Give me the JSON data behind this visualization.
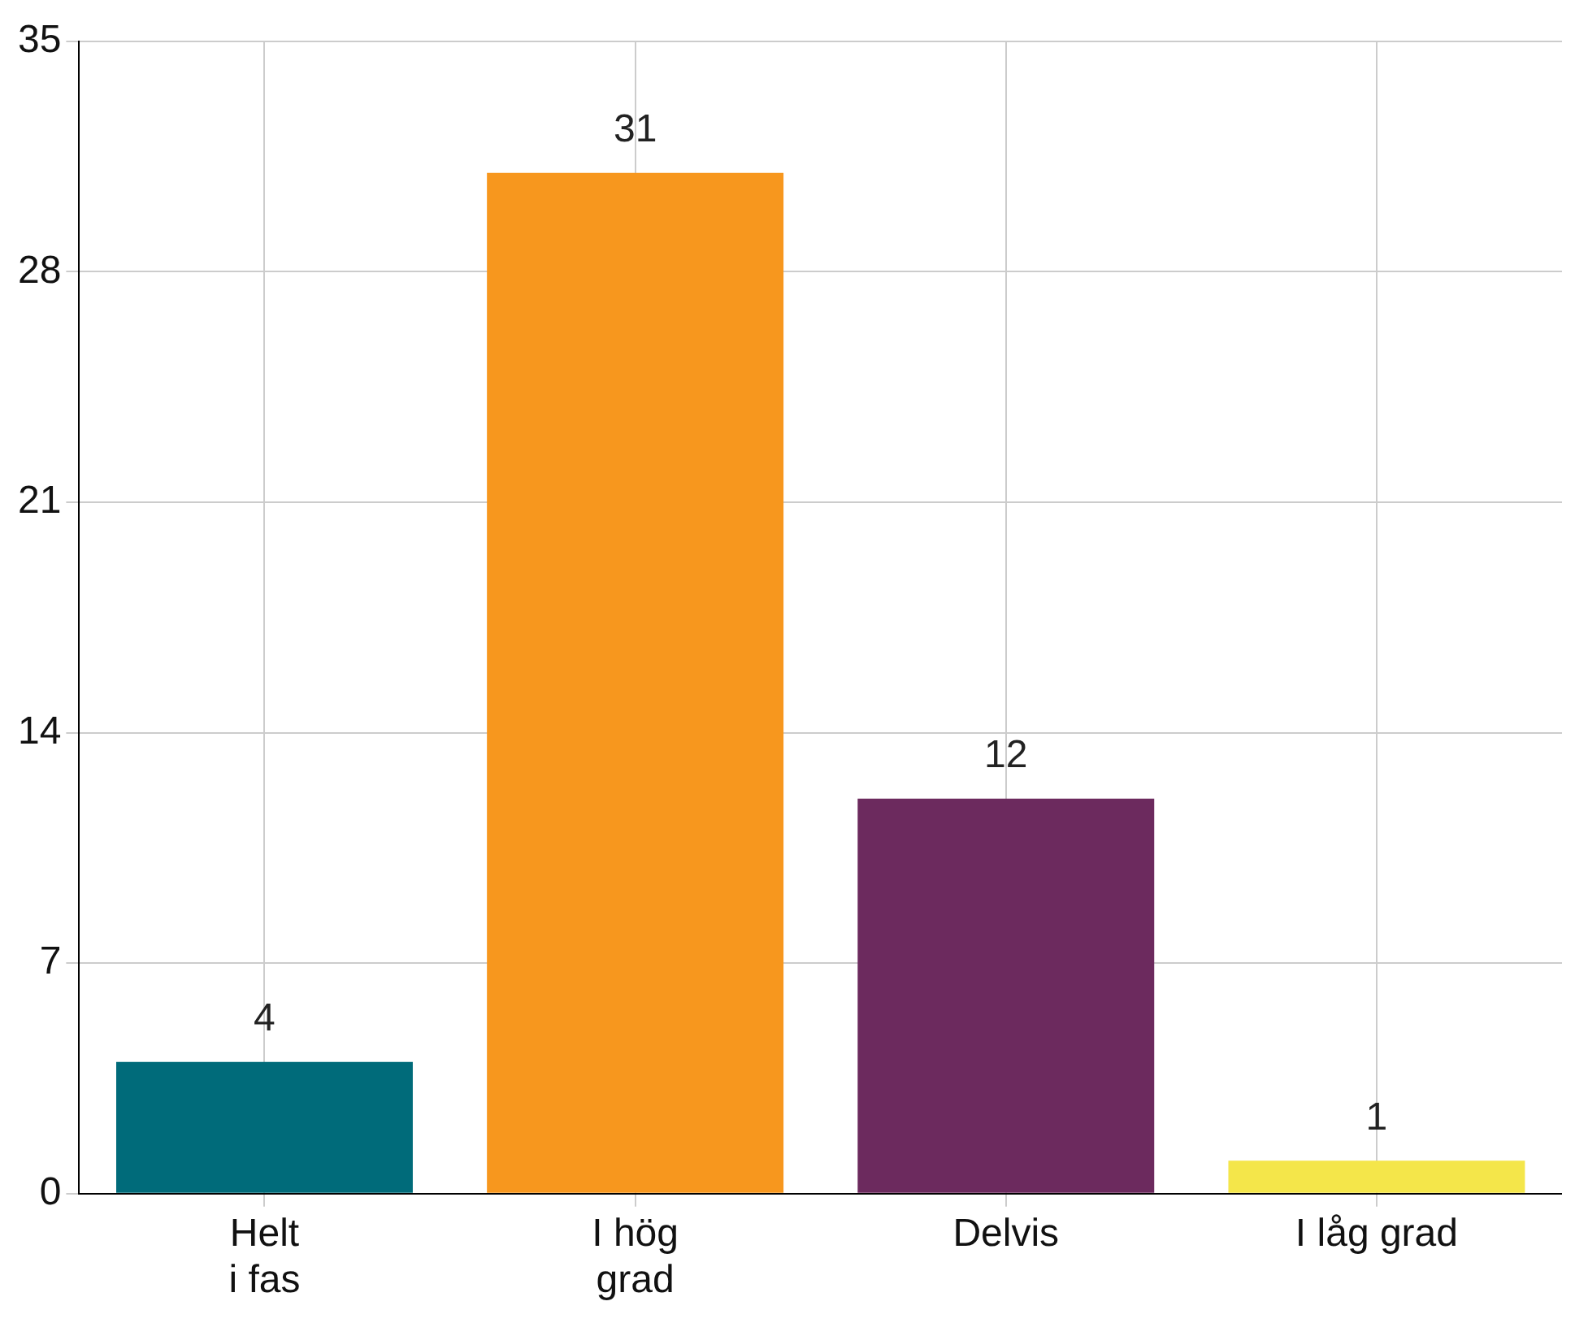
{
  "chart_data": {
    "type": "bar",
    "categories": [
      "Helt\ni fas",
      "I hög\ngrad",
      "Delvis",
      "I låg grad"
    ],
    "values": [
      4,
      31,
      12,
      1
    ],
    "colors": [
      "#006b7a",
      "#f7971e",
      "#6c2a5e",
      "#f4e64a"
    ],
    "ylim": [
      0,
      35
    ],
    "yticks": [
      0,
      7,
      14,
      21,
      28,
      35
    ],
    "grid": true,
    "data_labels": true,
    "legend": false
  }
}
